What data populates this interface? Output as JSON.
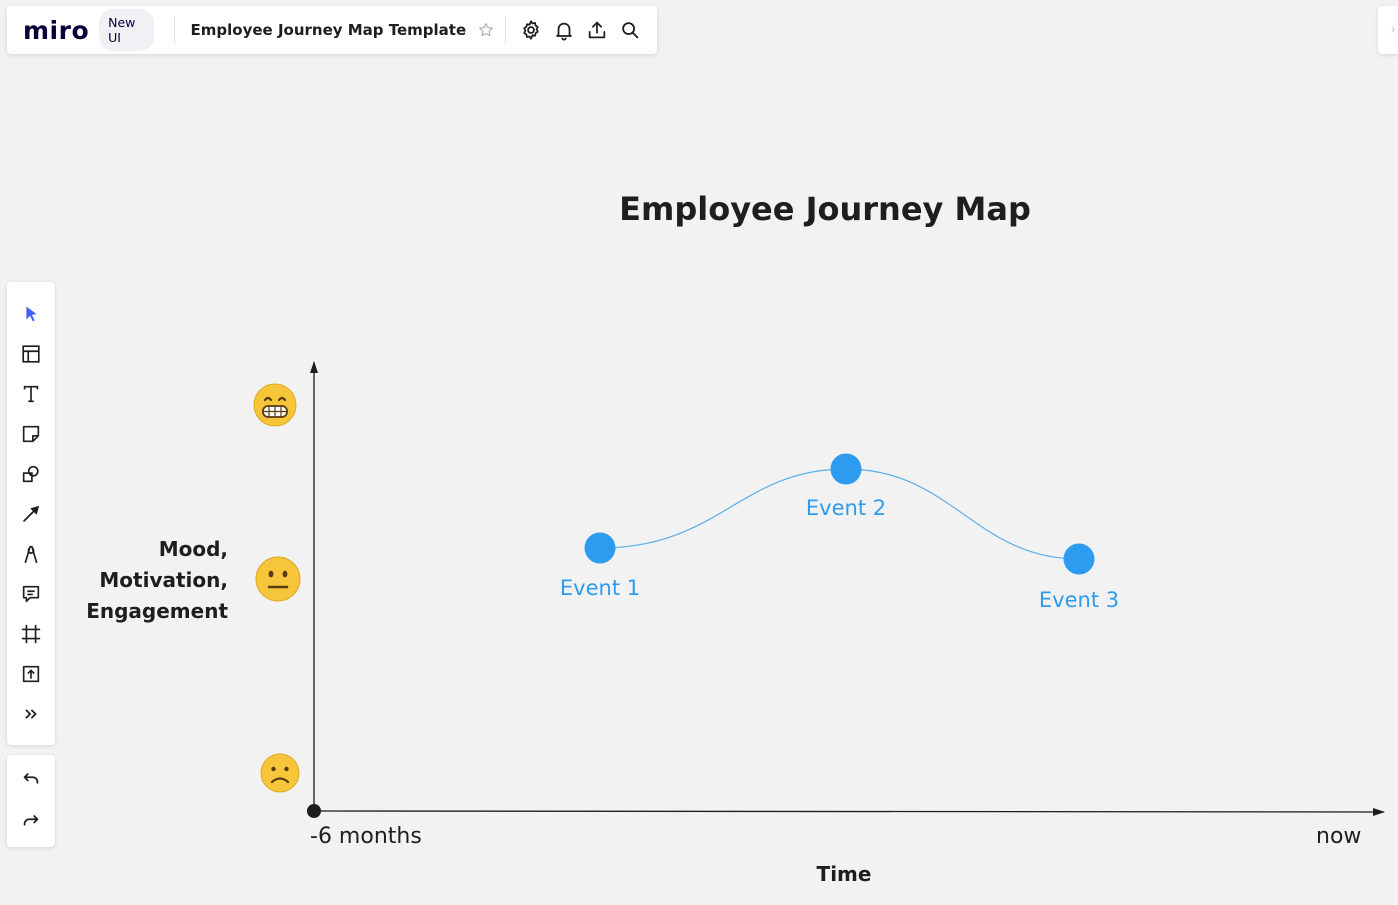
{
  "app": {
    "logo": "miro",
    "badge": "New UI",
    "board_title": "Employee Journey Map Template",
    "icons": [
      "star-icon",
      "gear-icon",
      "bell-icon",
      "upload-icon",
      "search-icon"
    ],
    "right_stub_glyph": "›"
  },
  "toolbar": {
    "tools": [
      {
        "name": "select-tool",
        "icon": "cursor-icon",
        "active": true
      },
      {
        "name": "templates-tool",
        "icon": "templates-icon"
      },
      {
        "name": "text-tool",
        "icon": "text-icon"
      },
      {
        "name": "sticky-note-tool",
        "icon": "sticky-note-icon"
      },
      {
        "name": "shapes-tool",
        "icon": "shapes-icon"
      },
      {
        "name": "connection-line-tool",
        "icon": "arrow-icon"
      },
      {
        "name": "pen-tool",
        "icon": "pen-icon"
      },
      {
        "name": "comment-tool",
        "icon": "comment-icon"
      },
      {
        "name": "frame-tool",
        "icon": "frame-icon"
      },
      {
        "name": "upload-tool",
        "icon": "upload-icon"
      },
      {
        "name": "more-tools",
        "icon": "double-chevron-icon"
      }
    ],
    "undo_icon": "undo-icon",
    "redo_icon": "redo-icon"
  },
  "board": {
    "title": "Employee Journey Map",
    "y_axis_label_lines": [
      "Mood,",
      "Motivation,",
      "Engagement"
    ],
    "x_axis_start": "-6 months",
    "x_axis_end": "now",
    "x_axis_label": "Time",
    "mood_levels": [
      {
        "name": "happy-emoji",
        "emoji": "😁"
      },
      {
        "name": "neutral-emoji",
        "emoji": "😐"
      },
      {
        "name": "sad-emoji",
        "emoji": "☹️"
      }
    ],
    "events": [
      {
        "label": "Event 1"
      },
      {
        "label": "Event 2"
      },
      {
        "label": "Event 3"
      }
    ],
    "colors": {
      "event": "#2d9bf0",
      "axis": "#1e1e1e",
      "curve": "#5aaeea"
    }
  }
}
